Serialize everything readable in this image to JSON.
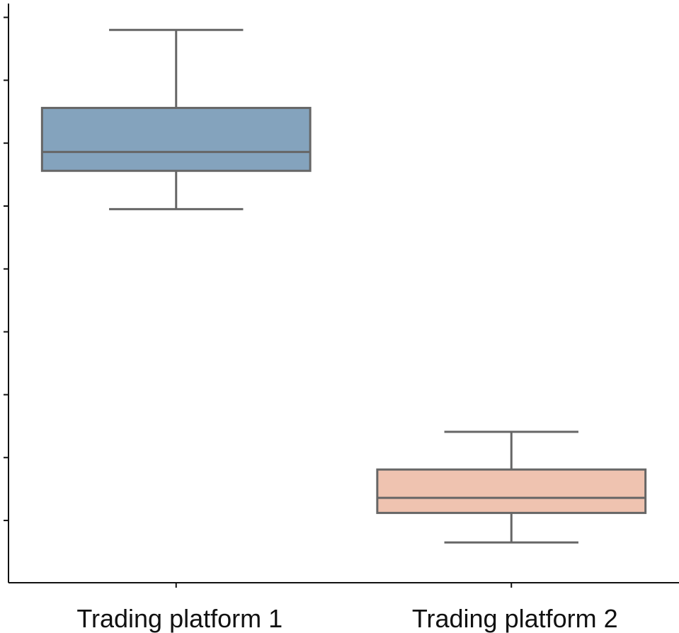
{
  "chart_data": {
    "type": "box",
    "categories": [
      "Trading platform 1",
      "Trading platform 2"
    ],
    "boxes": [
      {
        "category": "Trading platform 1",
        "whisker_low": 29.5,
        "q1": 35.6,
        "median": 38.6,
        "q3": 45.6,
        "whisker_high": 58.0
      },
      {
        "category": "Trading platform 2",
        "whisker_low": -23.5,
        "q1": -18.8,
        "median": -16.4,
        "q3": -11.9,
        "whisker_high": -5.9
      }
    ],
    "ylim": [
      -29.9,
      62.2
    ],
    "yticks": [
      -20,
      -10,
      0,
      10,
      20,
      30,
      40,
      50,
      60
    ],
    "show_ytick_labels": false,
    "grid": false,
    "colors": {
      "box_fills": [
        "#84A3BD",
        "#EFC3B0"
      ],
      "box_edge": "#666666",
      "axis": "#111111"
    }
  }
}
